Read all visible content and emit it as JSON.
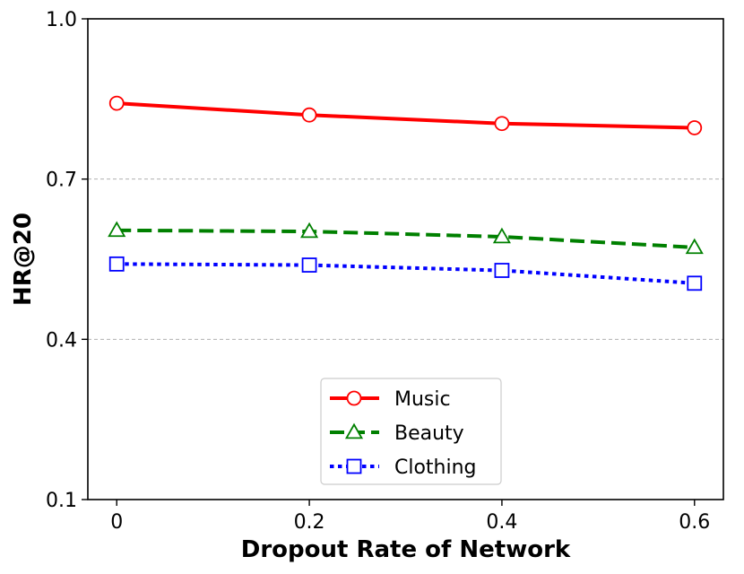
{
  "chart_data": {
    "type": "line",
    "title": "",
    "xlabel": "Dropout Rate of Network",
    "ylabel": "HR@20",
    "x": [
      0,
      0.2,
      0.4,
      0.6
    ],
    "x_tick_labels": [
      "0",
      "0.2",
      "0.4",
      "0.6"
    ],
    "xlim": [
      -0.03,
      0.63
    ],
    "ylim": [
      0.1,
      1.0
    ],
    "y_ticks": [
      0.1,
      0.4,
      0.7,
      1.0
    ],
    "y_tick_labels": [
      "0.1",
      "0.4",
      "0.7",
      "1.0"
    ],
    "grid": "horizontal dashed at y ticks",
    "legend_position": "lower-center",
    "series": [
      {
        "name": "Music",
        "values": [
          0.842,
          0.82,
          0.804,
          0.796
        ],
        "color": "#ff0000",
        "marker": "circle",
        "line_style": "solid"
      },
      {
        "name": "Beauty",
        "values": [
          0.604,
          0.602,
          0.592,
          0.572
        ],
        "color": "#008000",
        "marker": "triangle",
        "line_style": "dashed"
      },
      {
        "name": "Clothing",
        "values": [
          0.541,
          0.539,
          0.529,
          0.505
        ],
        "color": "#0000ff",
        "marker": "square",
        "line_style": "dotted"
      }
    ]
  }
}
